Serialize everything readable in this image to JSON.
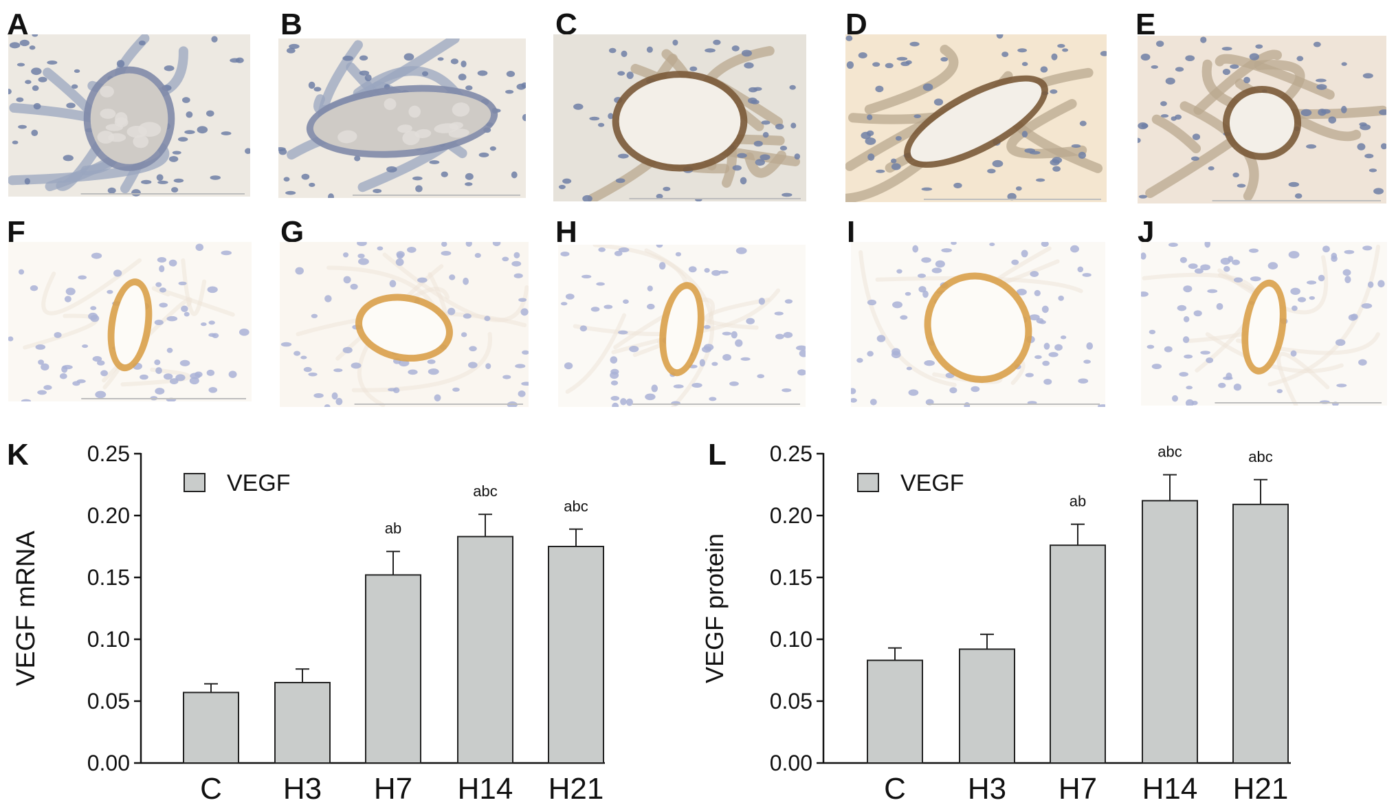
{
  "figure": {
    "panel_letters": [
      "A",
      "B",
      "C",
      "D",
      "E",
      "F",
      "G",
      "H",
      "I",
      "J",
      "K",
      "L"
    ],
    "micrographs": [
      {
        "letter": "A",
        "stain": "hematoxylin",
        "bg": "#ede9e2",
        "vessel": "round-filled"
      },
      {
        "letter": "B",
        "stain": "hematoxylin",
        "bg": "#efeae2",
        "vessel": "elongated-filled"
      },
      {
        "letter": "C",
        "stain": "dab-brown",
        "bg": "#e6e2da",
        "vessel": "oval-ring"
      },
      {
        "letter": "D",
        "stain": "dab-brown",
        "bg": "#f4e6d0",
        "vessel": "diagonal-ring"
      },
      {
        "letter": "E",
        "stain": "dab-brown",
        "bg": "#efe4d8",
        "vessel": "small-ring"
      },
      {
        "letter": "F",
        "stain": "dab-yellow",
        "bg": "#fbf8f3",
        "vessel": "vertical-ring"
      },
      {
        "letter": "G",
        "stain": "dab-yellow",
        "bg": "#faf6f0",
        "vessel": "wide-ring"
      },
      {
        "letter": "H",
        "stain": "dab-yellow",
        "bg": "#fbf9f5",
        "vessel": "vertical-ring"
      },
      {
        "letter": "I",
        "stain": "dab-yellow",
        "bg": "#fbf9f5",
        "vessel": "tilted-ring"
      },
      {
        "letter": "J",
        "stain": "dab-yellow",
        "bg": "#fbf9f5",
        "vessel": "vertical-ring"
      }
    ]
  },
  "colors": {
    "bar_fill": "#c9cccb",
    "bar_stroke": "#222222",
    "axis": "#111111"
  },
  "chart_data": [
    {
      "panel": "K",
      "type": "bar",
      "categories": [
        "C",
        "H3",
        "H7",
        "H14",
        "H21"
      ],
      "series": [
        {
          "name": "VEGF",
          "values": [
            0.057,
            0.065,
            0.152,
            0.183,
            0.175
          ],
          "errors": [
            0.007,
            0.011,
            0.019,
            0.018,
            0.014
          ]
        }
      ],
      "annotations": [
        "",
        "",
        "ab",
        "abc",
        "abc"
      ],
      "ylabel": "VEGF mRNA",
      "xlabel": "",
      "ylim": [
        0,
        0.25
      ],
      "yticks": [
        "0.00",
        "0.05",
        "0.10",
        "0.15",
        "0.20",
        "0.25"
      ],
      "legend": "top-left",
      "grid": false
    },
    {
      "panel": "L",
      "type": "bar",
      "categories": [
        "C",
        "H3",
        "H7",
        "H14",
        "H21"
      ],
      "series": [
        {
          "name": "VEGF",
          "values": [
            0.083,
            0.092,
            0.176,
            0.212,
            0.209
          ],
          "errors": [
            0.01,
            0.012,
            0.017,
            0.021,
            0.02
          ]
        }
      ],
      "annotations": [
        "",
        "",
        "ab",
        "abc",
        "abc"
      ],
      "ylabel": "VEGF protein",
      "xlabel": "",
      "ylim": [
        0,
        0.25
      ],
      "yticks": [
        "0.00",
        "0.05",
        "0.10",
        "0.15",
        "0.20",
        "0.25"
      ],
      "legend": "top-left",
      "grid": false
    }
  ]
}
